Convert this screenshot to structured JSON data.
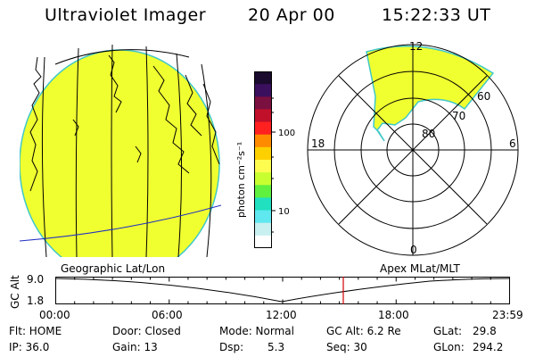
{
  "header": {
    "instrument": "Ultraviolet Imager",
    "date": "20 Apr 00",
    "time": "15:22:33 UT"
  },
  "colorbar": {
    "unit_label": "photon cm⁻²s⁻¹",
    "ticks": [
      "100",
      "10"
    ],
    "colors": [
      "#1a0a2e",
      "#3a0f5e",
      "#7a1040",
      "#c0102a",
      "#ff2020",
      "#ff8c00",
      "#ffd000",
      "#fffc50",
      "#c8ff30",
      "#60f040",
      "#20e0c0",
      "#60e8f0",
      "#c8f0f0",
      "#ffffff"
    ]
  },
  "polar_plot": {
    "mlt_labels": [
      "12",
      "18",
      "6",
      "0"
    ],
    "lat_labels": [
      "60",
      "70",
      "80"
    ]
  },
  "timeline": {
    "left_label": "Geographic Lat/Lon",
    "right_label": "Apex MLat/MLT",
    "y_axis_label": "GC Alt",
    "y_ticks": [
      "9.0",
      "1.8"
    ],
    "x_ticks": [
      "00:00",
      "06:00",
      "12:00",
      "18:00",
      "23:59"
    ],
    "marker_color": "#d00000"
  },
  "status": {
    "flt": "Flt: HOME",
    "ip": "IP: 36.0",
    "door": "Door: Closed",
    "gain": "Gain: 13",
    "mode": "Mode: Normal",
    "dsp": "Dsp:",
    "dsp_value": "5.3",
    "gcalt": "GC Alt: 6.2 Re",
    "seq": "Seq: 30",
    "glat": "GLat:",
    "glat_value": "29.8",
    "glon": "GLon:",
    "glon_value": "294.2"
  },
  "image_fill_color": "#f0ff30",
  "image_edge_color": "#40c8c8"
}
